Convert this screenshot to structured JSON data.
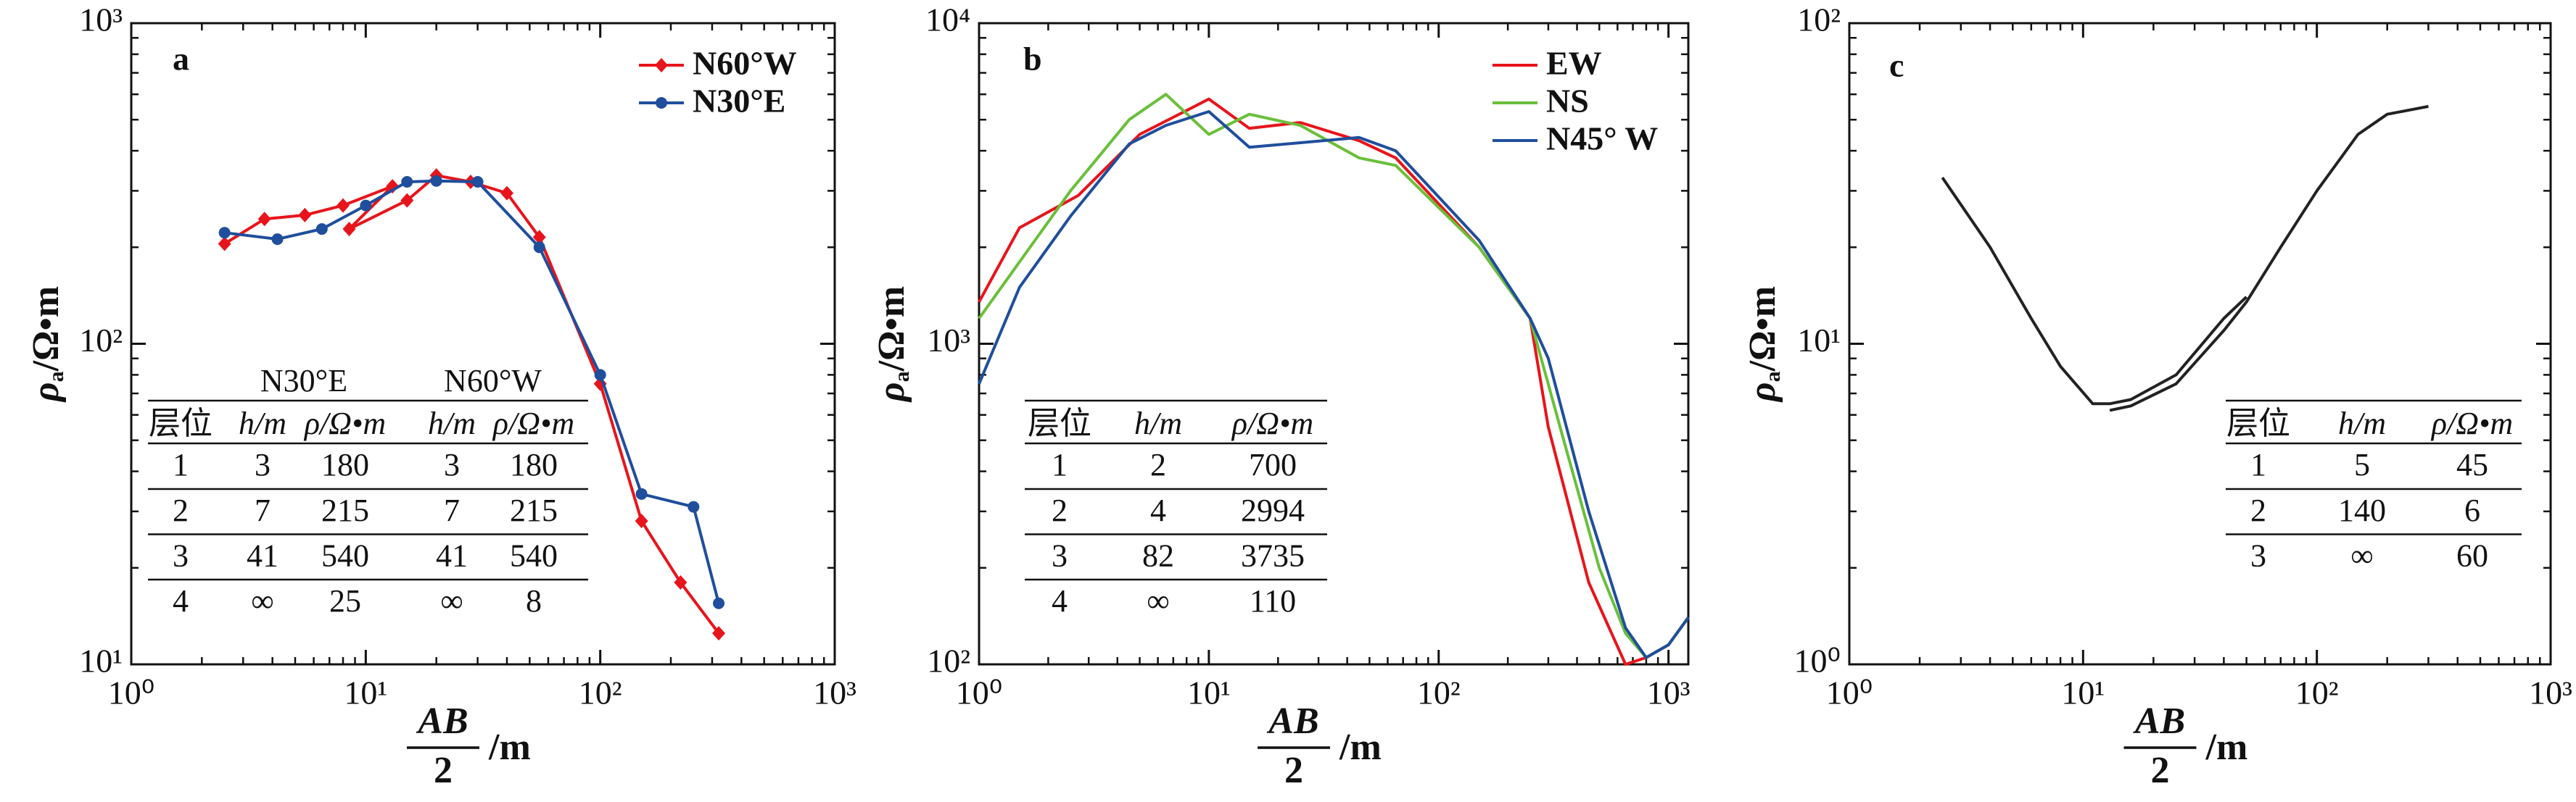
{
  "chart_data": [
    {
      "type": "line",
      "label": "a",
      "ylabel": {
        "symbol": "ρ",
        "subscript": "a",
        "unit": "/Ω•m"
      },
      "xlabel": {
        "numerator": "AB",
        "denominator": "2",
        "unit": "/m"
      },
      "log_x": true,
      "log_y": true,
      "xlim": [
        1,
        1000
      ],
      "ylim": [
        10,
        1000
      ],
      "xticks": [
        {
          "value": 1,
          "label": "10⁰"
        },
        {
          "value": 10,
          "label": "10¹"
        },
        {
          "value": 100,
          "label": "10²"
        },
        {
          "value": 1000,
          "label": "10³"
        }
      ],
      "yticks": [
        {
          "value": 10,
          "label": "10¹"
        },
        {
          "value": 100,
          "label": "10²"
        },
        {
          "value": 1000,
          "label": "10³"
        }
      ],
      "legend": "upper right",
      "series": [
        {
          "name": "N60°W",
          "color": "#e8141b",
          "marker": "diamond",
          "x": [
            2.5,
            3.7,
            5.5,
            8,
            13,
            8.5,
            15,
            20,
            28,
            40,
            55,
            100,
            150,
            220,
            320
          ],
          "values": [
            205,
            245,
            252,
            270,
            310,
            228,
            280,
            335,
            320,
            295,
            215,
            75,
            28,
            18,
            12.5
          ]
        },
        {
          "name": "N30°E",
          "color": "#1f4e9c",
          "marker": "circle",
          "x": [
            2.5,
            4.2,
            6.5,
            10,
            15,
            20,
            30,
            55,
            100,
            150,
            250,
            320
          ],
          "values": [
            222,
            212,
            228,
            270,
            320,
            322,
            320,
            200,
            80,
            34,
            31,
            15.5
          ]
        }
      ],
      "table": {
        "groups": [
          "N30°E",
          "N60°W"
        ],
        "columns": [
          "层位",
          "h/m",
          "ρ/Ω•m",
          "h/m",
          "ρ/Ω•m"
        ],
        "rows": [
          [
            1,
            3,
            180,
            3,
            180
          ],
          [
            2,
            7,
            215,
            7,
            215
          ],
          [
            3,
            41,
            540,
            41,
            540
          ],
          [
            4,
            "∞",
            25,
            "∞",
            8
          ]
        ]
      }
    },
    {
      "type": "line",
      "label": "b",
      "ylabel": {
        "symbol": "ρ",
        "subscript": "a",
        "unit": "/Ω•m"
      },
      "xlabel": {
        "numerator": "AB",
        "denominator": "2",
        "unit": "/m"
      },
      "log_x": true,
      "log_y": true,
      "xlim": [
        1,
        1220
      ],
      "ylim": [
        100,
        10000
      ],
      "xticks": [
        {
          "value": 1,
          "label": "10⁰"
        },
        {
          "value": 10,
          "label": "10¹"
        },
        {
          "value": 100,
          "label": "10²"
        },
        {
          "value": 1000,
          "label": "10³"
        }
      ],
      "yticks": [
        {
          "value": 100,
          "label": "10²"
        },
        {
          "value": 1000,
          "label": "10³"
        },
        {
          "value": 10000,
          "label": "10⁴"
        }
      ],
      "legend": "upper right",
      "series": [
        {
          "name": "EW",
          "color": "#e8141b",
          "x": [
            1,
            1.5,
            2.7,
            5,
            10,
            15,
            25,
            45,
            65,
            150,
            250,
            300,
            450,
            650,
            800,
            1000,
            1220
          ],
          "values": [
            1350,
            2300,
            2900,
            4500,
            5800,
            4700,
            4900,
            4300,
            3800,
            2000,
            1200,
            550,
            180,
            100,
            105,
            115,
            140
          ]
        },
        {
          "name": "NS",
          "color": "#6abf3a",
          "x": [
            1,
            1.5,
            2.5,
            4.5,
            6.5,
            10,
            15,
            25,
            45,
            65,
            150,
            250,
            350,
            500,
            650,
            800,
            1000,
            1220
          ],
          "values": [
            1200,
            1800,
            3000,
            5000,
            6000,
            4500,
            5200,
            4800,
            3800,
            3600,
            2000,
            1200,
            500,
            200,
            125,
            105,
            115,
            140
          ]
        },
        {
          "name": "N45° W",
          "color": "#1f4e9c",
          "x": [
            1,
            1.5,
            2.5,
            4.5,
            6.5,
            10,
            15,
            45,
            65,
            150,
            250,
            300,
            450,
            650,
            800,
            1000,
            1220
          ],
          "values": [
            750,
            1500,
            2500,
            4200,
            4800,
            5300,
            4100,
            4400,
            4000,
            2100,
            1200,
            900,
            300,
            130,
            105,
            115,
            140
          ]
        }
      ],
      "table": {
        "columns": [
          "层位",
          "h/m",
          "ρ/Ω•m"
        ],
        "rows": [
          [
            1,
            2,
            700
          ],
          [
            2,
            4,
            2994
          ],
          [
            3,
            82,
            3735
          ],
          [
            4,
            "∞",
            110
          ]
        ]
      }
    },
    {
      "type": "line",
      "label": "c",
      "ylabel": {
        "symbol": "ρ",
        "subscript": "a",
        "unit": "/Ω•m"
      },
      "xlabel": {
        "numerator": "AB",
        "denominator": "2",
        "unit": "/m"
      },
      "log_x": true,
      "log_y": true,
      "xlim": [
        1,
        1000
      ],
      "ylim": [
        1,
        100
      ],
      "xticks": [
        {
          "value": 1,
          "label": "10⁰"
        },
        {
          "value": 10,
          "label": "10¹"
        },
        {
          "value": 100,
          "label": "10²"
        },
        {
          "value": 1000,
          "label": "10³"
        }
      ],
      "yticks": [
        {
          "value": 1,
          "label": "10⁰"
        },
        {
          "value": 10,
          "label": "10¹"
        },
        {
          "value": 100,
          "label": "10²"
        }
      ],
      "series": [
        {
          "color": "#222222",
          "x": [
            2.5,
            4,
            6,
            8,
            11,
            13,
            16,
            25,
            40,
            50
          ],
          "values": [
            33,
            20,
            12,
            8.5,
            6.5,
            6.5,
            6.7,
            8,
            12,
            14
          ]
        },
        {
          "color": "#222222",
          "x": [
            13,
            16,
            25,
            40,
            50,
            70,
            100,
            150,
            200,
            300
          ],
          "values": [
            6.2,
            6.4,
            7.5,
            11,
            13.5,
            20,
            30,
            45,
            52,
            55
          ]
        }
      ],
      "table": {
        "columns": [
          "层位",
          "h/m",
          "ρ/Ω•m"
        ],
        "rows": [
          [
            1,
            5,
            45
          ],
          [
            2,
            140,
            6
          ],
          [
            3,
            "∞",
            60
          ]
        ]
      }
    }
  ]
}
